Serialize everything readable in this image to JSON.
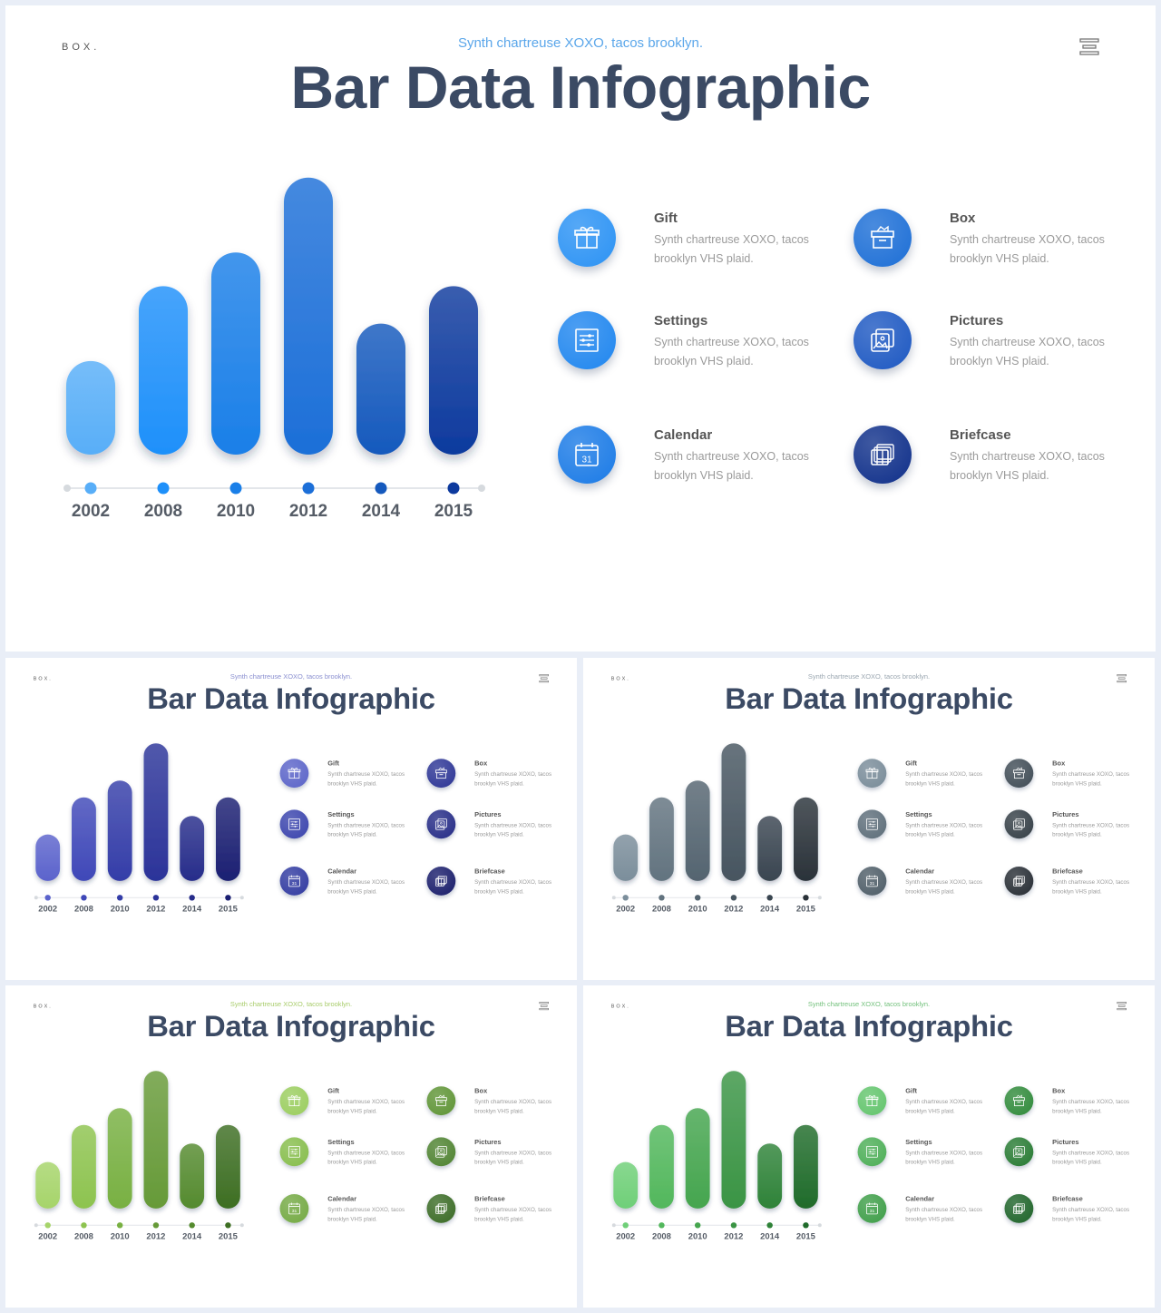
{
  "brand": "BOX.",
  "subtitle": "Synth chartreuse XOXO, tacos brooklyn.",
  "title": "Bar Data Infographic",
  "chart_data": {
    "type": "bar",
    "categories": [
      "2002",
      "2008",
      "2010",
      "2012",
      "2014",
      "2015"
    ],
    "values": [
      25,
      45,
      54,
      74,
      35,
      45
    ],
    "ylim": [
      0,
      80
    ],
    "grid": false
  },
  "features": [
    {
      "title": "Gift",
      "desc": "Synth chartreuse XOXO, tacos brooklyn VHS plaid.",
      "icon": "gift-icon"
    },
    {
      "title": "Box",
      "desc": "Synth chartreuse XOXO, tacos brooklyn VHS plaid.",
      "icon": "box-icon"
    },
    {
      "title": "Settings",
      "desc": "Synth chartreuse XOXO, tacos brooklyn VHS plaid.",
      "icon": "settings-icon"
    },
    {
      "title": "Pictures",
      "desc": "Synth chartreuse XOXO, tacos brooklyn VHS plaid.",
      "icon": "pictures-icon"
    },
    {
      "title": "Calendar",
      "desc": "Synth chartreuse XOXO, tacos brooklyn VHS plaid.",
      "icon": "calendar-icon",
      "icon_text": "31"
    },
    {
      "title": "Briefcase",
      "desc": "Synth chartreuse XOXO, tacos brooklyn VHS plaid.",
      "icon": "briefcase-icon"
    }
  ],
  "themes": [
    {
      "id": "main",
      "subtitle_color": "#5aa6ea",
      "bars": [
        "#58aef8",
        "#1e90fa",
        "#1a7fe8",
        "#1c6fd8",
        "#1559bd",
        "#0d3a9e"
      ],
      "icons": [
        "#2b92f4",
        "#1c6ed6",
        "#1f86ef",
        "#1d58c2",
        "#1a7ae6",
        "#0f2f8a"
      ]
    },
    {
      "id": "s1",
      "subtitle_color": "#8a8fd0",
      "bars": [
        "#5b63cc",
        "#3f48b8",
        "#343da8",
        "#2b3399",
        "#262c8a",
        "#1b1f72"
      ],
      "icons": [
        "#5a63c8",
        "#2c3495",
        "#3a43ad",
        "#242b86",
        "#3039a0",
        "#181c6a"
      ]
    },
    {
      "id": "s2",
      "subtitle_color": "#9aa6b0",
      "bars": [
        "#7b8e9b",
        "#62737f",
        "#546470",
        "#475560",
        "#394550",
        "#2a3239"
      ],
      "icons": [
        "#788b98",
        "#3f4b55",
        "#5c6d79",
        "#333d45",
        "#4d5c67",
        "#262c33"
      ]
    },
    {
      "id": "s3",
      "subtitle_color": "#a8cc6a",
      "bars": [
        "#a6d46a",
        "#8dc34f",
        "#78b042",
        "#669a38",
        "#548a2e",
        "#3d6e22"
      ],
      "icons": [
        "#9acd5e",
        "#5e9434",
        "#86bd4b",
        "#4e8230",
        "#73a942",
        "#396a24"
      ]
    },
    {
      "id": "s4",
      "subtitle_color": "#72c07b",
      "bars": [
        "#6fcf78",
        "#52b75c",
        "#45a54e",
        "#3a9444",
        "#2e8238",
        "#1f6b2a"
      ],
      "icons": [
        "#62c46c",
        "#2f8a3a",
        "#4cae56",
        "#277a32",
        "#3d9d47",
        "#1d6328"
      ]
    }
  ]
}
